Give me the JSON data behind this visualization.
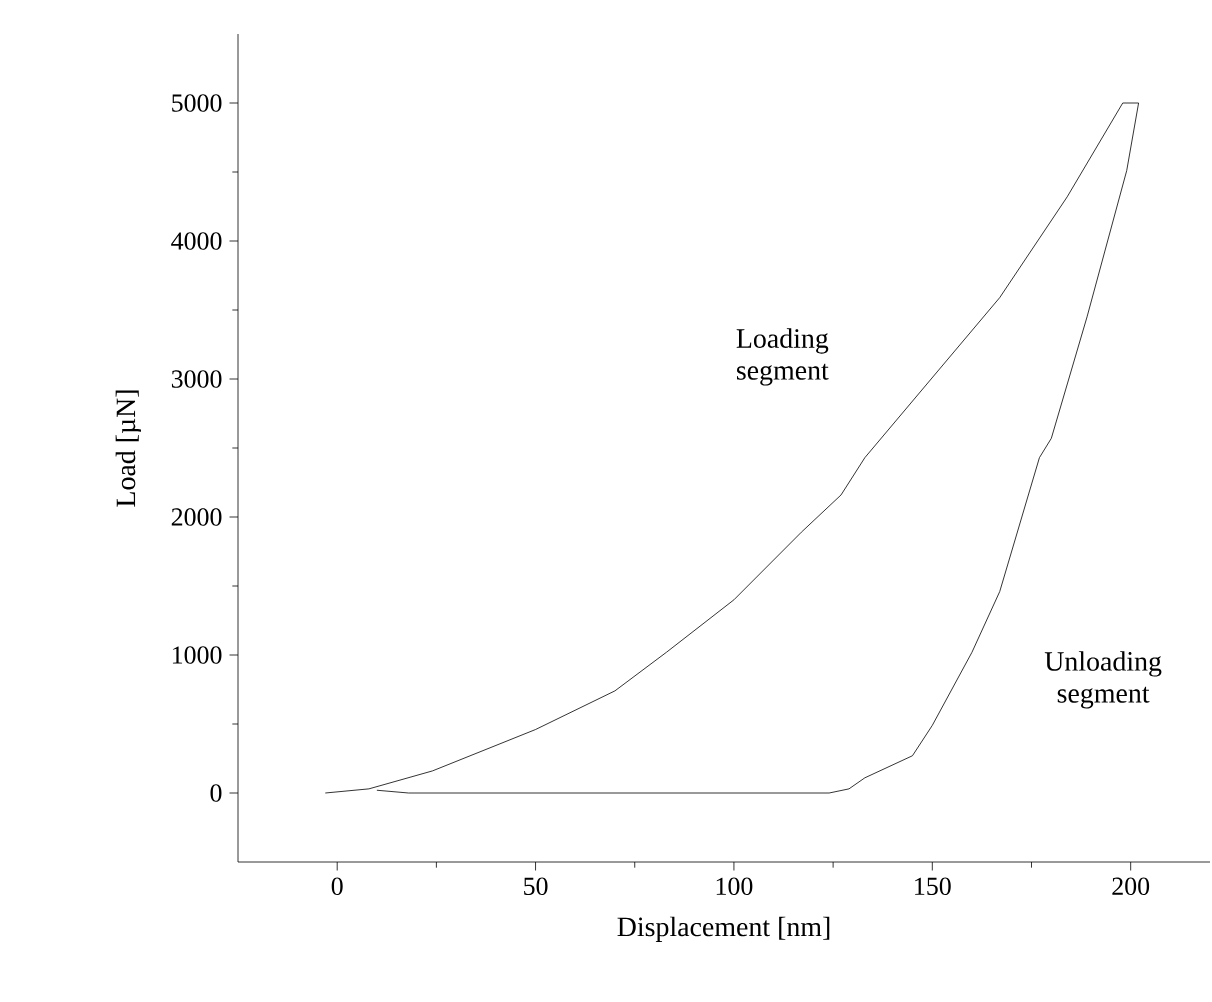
{
  "chart_data": {
    "type": "line",
    "xlabel": "Displacement [nm]",
    "ylabel": "Load [µN]",
    "xlim": [
      -25,
      220
    ],
    "ylim": [
      -500,
      5500
    ],
    "xticks": [
      0,
      50,
      100,
      150,
      200
    ],
    "yticks": [
      0,
      1000,
      2000,
      3000,
      4000,
      5000
    ],
    "grid": false,
    "marker": "none",
    "line_style": "solid",
    "series": [
      {
        "color": "#000000",
        "x": [
          -3,
          8,
          24,
          50,
          70,
          83,
          100,
          117,
          127,
          133,
          150,
          167,
          184,
          198,
          202
        ],
        "values": [
          0,
          30,
          160,
          460,
          740,
          1020,
          1400,
          1890,
          2160,
          2430,
          3010,
          3590,
          4320,
          5000,
          5000
        ]
      },
      {
        "color": "#000000",
        "x": [
          202,
          199,
          189,
          180,
          177,
          167,
          160,
          150,
          145,
          133,
          129,
          124,
          18,
          10
        ],
        "values": [
          5000,
          4510,
          3450,
          2570,
          2430,
          1460,
          1020,
          490,
          270,
          110,
          30,
          0,
          0,
          20
        ]
      }
    ],
    "annotations": [
      "Loading segment",
      "Unloading segment"
    ]
  }
}
